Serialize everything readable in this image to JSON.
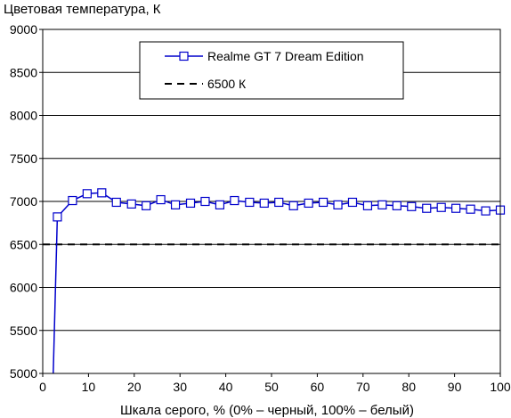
{
  "chart_data": {
    "type": "line",
    "title": "",
    "ylabel": "Цветовая температура, К",
    "xlabel": "Шкала серого, % (0% – черный, 100% – белый)",
    "xlim": [
      0,
      100
    ],
    "ylim": [
      5000,
      9000
    ],
    "xticks": [
      0,
      10,
      20,
      30,
      40,
      50,
      60,
      70,
      80,
      90,
      100
    ],
    "yticks": [
      5000,
      5500,
      6000,
      6500,
      7000,
      7500,
      8000,
      8500,
      9000
    ],
    "xtick_labels": [
      "0",
      "10",
      "20",
      "30",
      "40",
      "50",
      "60",
      "70",
      "80",
      "90",
      "100"
    ],
    "ytick_labels": [
      "5000",
      "5500",
      "6000",
      "6500",
      "7000",
      "7500",
      "8000",
      "8500",
      "9000"
    ],
    "grid": "horizontal",
    "legend_position": "top-center",
    "series": [
      {
        "name": "Realme GT 7 Dream Edition",
        "color": "#0000cc",
        "marker": "square-open",
        "x": [
          2.3,
          3.2,
          6.5,
          9.7,
          12.9,
          16.1,
          19.4,
          22.6,
          25.8,
          29.0,
          32.3,
          35.5,
          38.7,
          41.9,
          45.2,
          48.4,
          51.6,
          54.8,
          58.1,
          61.3,
          64.5,
          67.7,
          71.0,
          74.2,
          77.4,
          80.6,
          83.9,
          87.1,
          90.3,
          93.5,
          96.8,
          100
        ],
        "y": [
          4990,
          6820,
          7010,
          7090,
          7100,
          6990,
          6970,
          6950,
          7020,
          6960,
          6980,
          7000,
          6960,
          7010,
          6990,
          6980,
          6990,
          6950,
          6980,
          6990,
          6960,
          6990,
          6950,
          6960,
          6950,
          6940,
          6920,
          6930,
          6920,
          6910,
          6890,
          6900
        ]
      },
      {
        "name": "6500 К",
        "color": "#000000",
        "line_style": "dashed",
        "x": [
          0,
          100
        ],
        "y": [
          6500,
          6500
        ]
      }
    ]
  }
}
